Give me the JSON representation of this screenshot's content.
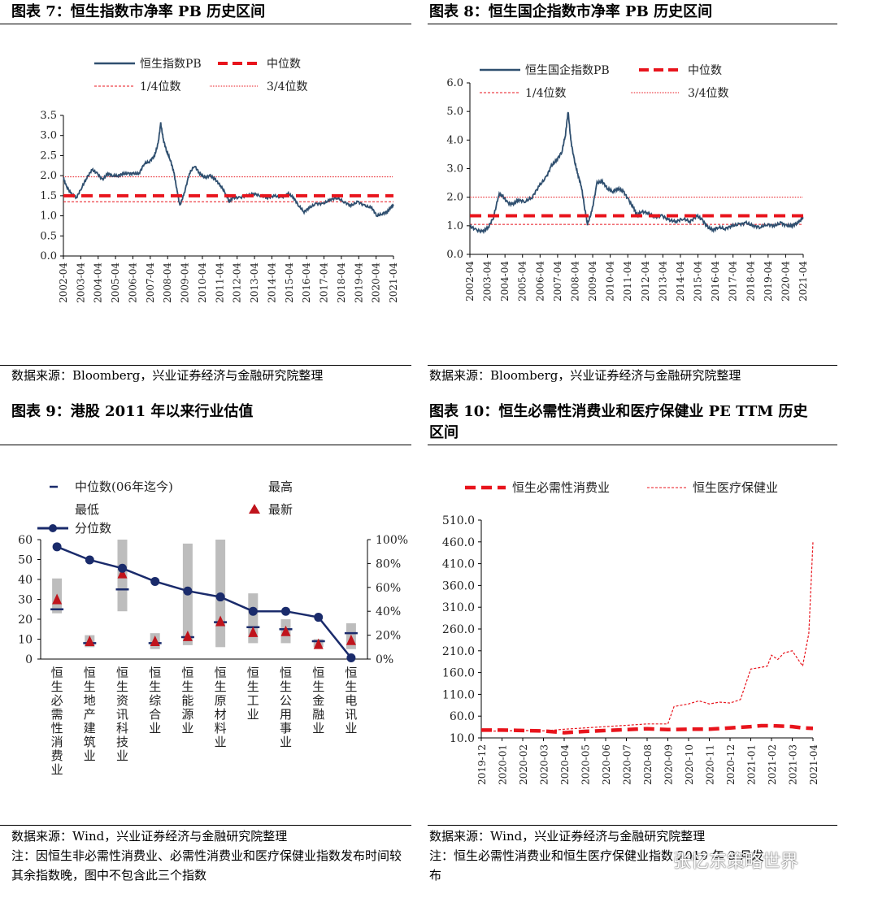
{
  "figures": [
    {
      "title": "图表 7：恒生指数市净率 PB 历史区间",
      "source": "数据来源：Bloomberg，兴业证券经济与金融研究院整理",
      "legend": {
        "series": "恒生指数PB",
        "median": "中位数",
        "q1": "1/4位数",
        "q3": "3/4位数"
      },
      "chart_data": {
        "type": "line",
        "y_ticks": [
          "0.0",
          "0.5",
          "1.0",
          "1.5",
          "2.0",
          "2.5",
          "3.0",
          "3.5"
        ],
        "ylim": [
          0,
          3.5
        ],
        "x_ticks": [
          "2002-04",
          "2003-04",
          "2004-04",
          "2005-04",
          "2006-04",
          "2007-04",
          "2008-04",
          "2009-04",
          "2010-04",
          "2011-04",
          "2012-04",
          "2013-04",
          "2014-04",
          "2015-04",
          "2016-04",
          "2017-04",
          "2018-04",
          "2019-04",
          "2020-04",
          "2021-04"
        ],
        "x_range": [
          2002.25,
          2021.25
        ],
        "series": [
          {
            "name": "恒生指数PB",
            "x": [
              2002.25,
              2002.4,
              2002.7,
              2003.0,
              2003.3,
              2003.6,
              2003.9,
              2004.2,
              2004.5,
              2004.8,
              2005.1,
              2005.4,
              2005.7,
              2006.0,
              2006.3,
              2006.6,
              2006.9,
              2007.2,
              2007.5,
              2007.7,
              2007.85,
              2008.0,
              2008.2,
              2008.4,
              2008.6,
              2008.8,
              2008.95,
              2009.2,
              2009.5,
              2009.8,
              2010.1,
              2010.4,
              2010.7,
              2011.0,
              2011.3,
              2011.6,
              2011.8,
              2012.0,
              2012.4,
              2012.8,
              2013.2,
              2013.6,
              2014.0,
              2014.4,
              2014.8,
              2015.2,
              2015.5,
              2015.8,
              2016.1,
              2016.4,
              2016.8,
              2017.2,
              2017.6,
              2018.0,
              2018.4,
              2018.8,
              2019.2,
              2019.6,
              2020.0,
              2020.3,
              2020.6,
              2020.9,
              2021.1,
              2021.25
            ],
            "values": [
              1.95,
              1.75,
              1.55,
              1.45,
              1.7,
              1.95,
              2.15,
              2.05,
              1.9,
              2.05,
              2.0,
              2.0,
              2.05,
              2.05,
              2.05,
              2.05,
              2.3,
              2.35,
              2.5,
              2.8,
              3.3,
              2.9,
              2.6,
              2.4,
              2.1,
              1.6,
              1.25,
              1.55,
              2.05,
              2.25,
              2.05,
              1.95,
              2.0,
              1.9,
              1.75,
              1.55,
              1.35,
              1.45,
              1.45,
              1.5,
              1.55,
              1.5,
              1.45,
              1.5,
              1.45,
              1.55,
              1.45,
              1.25,
              1.1,
              1.2,
              1.3,
              1.3,
              1.4,
              1.45,
              1.35,
              1.25,
              1.35,
              1.25,
              1.2,
              1.0,
              1.05,
              1.1,
              1.2,
              1.25
            ]
          }
        ],
        "median": 1.5,
        "q1": 1.35,
        "q3": 1.97
      }
    },
    {
      "title": "图表 8：恒生国企指数市净率 PB 历史区间",
      "source": "数据来源：Bloomberg，兴业证券经济与金融研究院整理",
      "legend": {
        "series": "恒生国企指数PB",
        "median": "中位数",
        "q1": "1/4位数",
        "q3": "3/4位数"
      },
      "chart_data": {
        "type": "line",
        "y_ticks": [
          "0.0",
          "1.0",
          "2.0",
          "3.0",
          "4.0",
          "5.0",
          "6.0"
        ],
        "ylim": [
          0,
          6
        ],
        "x_ticks": [
          "2002-04",
          "2003-04",
          "2004-04",
          "2005-04",
          "2006-04",
          "2007-04",
          "2008-04",
          "2009-04",
          "2010-04",
          "2011-04",
          "2012-04",
          "2013-04",
          "2014-04",
          "2015-04",
          "2016-04",
          "2017-04",
          "2018-04",
          "2019-04",
          "2020-04",
          "2021-04"
        ],
        "x_range": [
          2002.25,
          2021.25
        ],
        "series": [
          {
            "name": "恒生国企指数PB",
            "x": [
              2002.25,
              2002.6,
              2003.0,
              2003.3,
              2003.6,
              2003.9,
              2004.1,
              2004.4,
              2004.7,
              2005.0,
              2005.4,
              2005.8,
              2006.2,
              2006.6,
              2006.9,
              2007.2,
              2007.5,
              2007.7,
              2007.85,
              2008.0,
              2008.2,
              2008.4,
              2008.6,
              2008.8,
              2008.95,
              2009.2,
              2009.5,
              2009.8,
              2010.1,
              2010.4,
              2010.7,
              2011.0,
              2011.3,
              2011.6,
              2011.8,
              2012.0,
              2012.4,
              2012.8,
              2013.2,
              2013.6,
              2014.0,
              2014.4,
              2014.8,
              2015.2,
              2015.5,
              2015.8,
              2016.1,
              2016.4,
              2016.8,
              2017.2,
              2017.6,
              2018.0,
              2018.4,
              2018.8,
              2019.2,
              2019.6,
              2020.0,
              2020.3,
              2020.6,
              2020.9,
              2021.1,
              2021.25
            ],
            "values": [
              1.0,
              0.85,
              0.8,
              0.95,
              1.3,
              2.1,
              2.05,
              1.8,
              1.75,
              1.9,
              1.85,
              2.0,
              2.4,
              2.7,
              3.1,
              3.3,
              3.6,
              4.2,
              5.0,
              4.0,
              3.3,
              2.8,
              2.4,
              1.6,
              1.05,
              1.5,
              2.5,
              2.55,
              2.3,
              2.2,
              2.3,
              2.2,
              1.9,
              1.6,
              1.35,
              1.5,
              1.45,
              1.3,
              1.35,
              1.2,
              1.15,
              1.25,
              1.15,
              1.35,
              1.2,
              0.95,
              0.85,
              0.95,
              0.9,
              1.0,
              1.05,
              1.1,
              1.0,
              0.95,
              1.05,
              1.0,
              1.1,
              1.0,
              1.0,
              1.1,
              1.2,
              1.3
            ]
          }
        ],
        "median": 1.35,
        "q1": 1.05,
        "q3": 2.0
      }
    },
    {
      "title": "图表 9：港股 2011 年以来行业估值",
      "source": "数据来源：Wind，兴业证券经济与金融研究院整理",
      "note": "注：因恒生非必需性消费业、必需性消费业和医疗保健业指数发布时间较其余指数晚，图中不包含此三个指数",
      "legend": {
        "median": "中位数(06年迄今)",
        "high": "最高",
        "low": "最低",
        "latest": "最新",
        "pct": "分位数"
      },
      "chart_data": {
        "type": "bar",
        "categories": [
          "恒生必需性消费业",
          "恒生地产建筑业",
          "恒生资讯科技业",
          "恒生综合业",
          "恒生能源业",
          "恒生原材料业",
          "恒生工业",
          "恒生公用事业",
          "恒生金融业",
          "恒生电讯业"
        ],
        "y_ticks": [
          "0",
          "10",
          "20",
          "30",
          "40",
          "50",
          "60"
        ],
        "y2_ticks": [
          "0%",
          "20%",
          "40%",
          "60%",
          "80%",
          "100%"
        ],
        "ylim": [
          0,
          60
        ],
        "y2lim": [
          0,
          100
        ],
        "low": [
          23,
          6,
          24,
          5,
          7,
          6,
          8,
          8,
          6,
          5
        ],
        "high": [
          40.5,
          12,
          60,
          13,
          58,
          60,
          33,
          20,
          10,
          18
        ],
        "median": [
          25,
          8,
          35,
          8,
          11,
          18.5,
          16,
          15,
          9,
          13
        ],
        "latest": [
          30,
          9,
          43,
          9,
          11.5,
          19,
          13.5,
          14,
          7.5,
          9.5
        ],
        "percentile": [
          94,
          83,
          76,
          65,
          57,
          52,
          40,
          40,
          35,
          1
        ]
      }
    },
    {
      "title": "图表 10：恒生必需性消费业和医疗保健业 PE TTM 历史区间",
      "source": "数据来源：Wind，兴业证券经济与金融研究院整理",
      "note": "注：恒生必需性消费业和恒生医疗保健业指数 2019 年 9 月发布",
      "legend": {
        "s1": "恒生必需性消费业",
        "s2": "恒生医疗保健业"
      },
      "chart_data": {
        "type": "line",
        "y_ticks": [
          "10.0",
          "60.0",
          "110.0",
          "160.0",
          "210.0",
          "260.0",
          "310.0",
          "360.0",
          "410.0",
          "460.0",
          "510.0"
        ],
        "ylim": [
          10,
          510
        ],
        "x_ticks": [
          "2019-12",
          "2020-01",
          "2020-02",
          "2020-03",
          "2020-04",
          "2020-05",
          "2020-06",
          "2020-07",
          "2020-08",
          "2020-09",
          "2020-10",
          "2020-11",
          "2020-12",
          "2021-01",
          "2021-02",
          "2021-03",
          "2021-04"
        ],
        "x_range": [
          0,
          16
        ],
        "series": [
          {
            "name": "恒生必需性消费业",
            "x": [
              0,
              1,
              2,
              3,
              4,
              5,
              6,
              7,
              8,
              9,
              10,
              11,
              12,
              13,
              13.5,
              14,
              15,
              15.5,
              16
            ],
            "values": [
              28,
              28,
              27,
              26,
              22,
              25,
              27,
              29,
              31,
              29,
              30,
              30,
              33,
              36,
              38,
              38,
              36,
              33,
              32
            ]
          },
          {
            "name": "恒生医疗保健业",
            "x": [
              0,
              1,
              2,
              3,
              4,
              5,
              6,
              7,
              8,
              9,
              9.3,
              10,
              10.5,
              11,
              11.5,
              12,
              12.5,
              13,
              13.5,
              13.8,
              14,
              14.3,
              14.6,
              15,
              15.5,
              15.8,
              16
            ],
            "values": [
              25,
              26,
              27,
              26,
              30,
              33,
              36,
              39,
              42,
              42,
              82,
              88,
              95,
              88,
              92,
              90,
              98,
              168,
              172,
              175,
              200,
              190,
              205,
              210,
              175,
              250,
              460
            ]
          }
        ]
      }
    }
  ],
  "watermark": "张忆东策略世界"
}
